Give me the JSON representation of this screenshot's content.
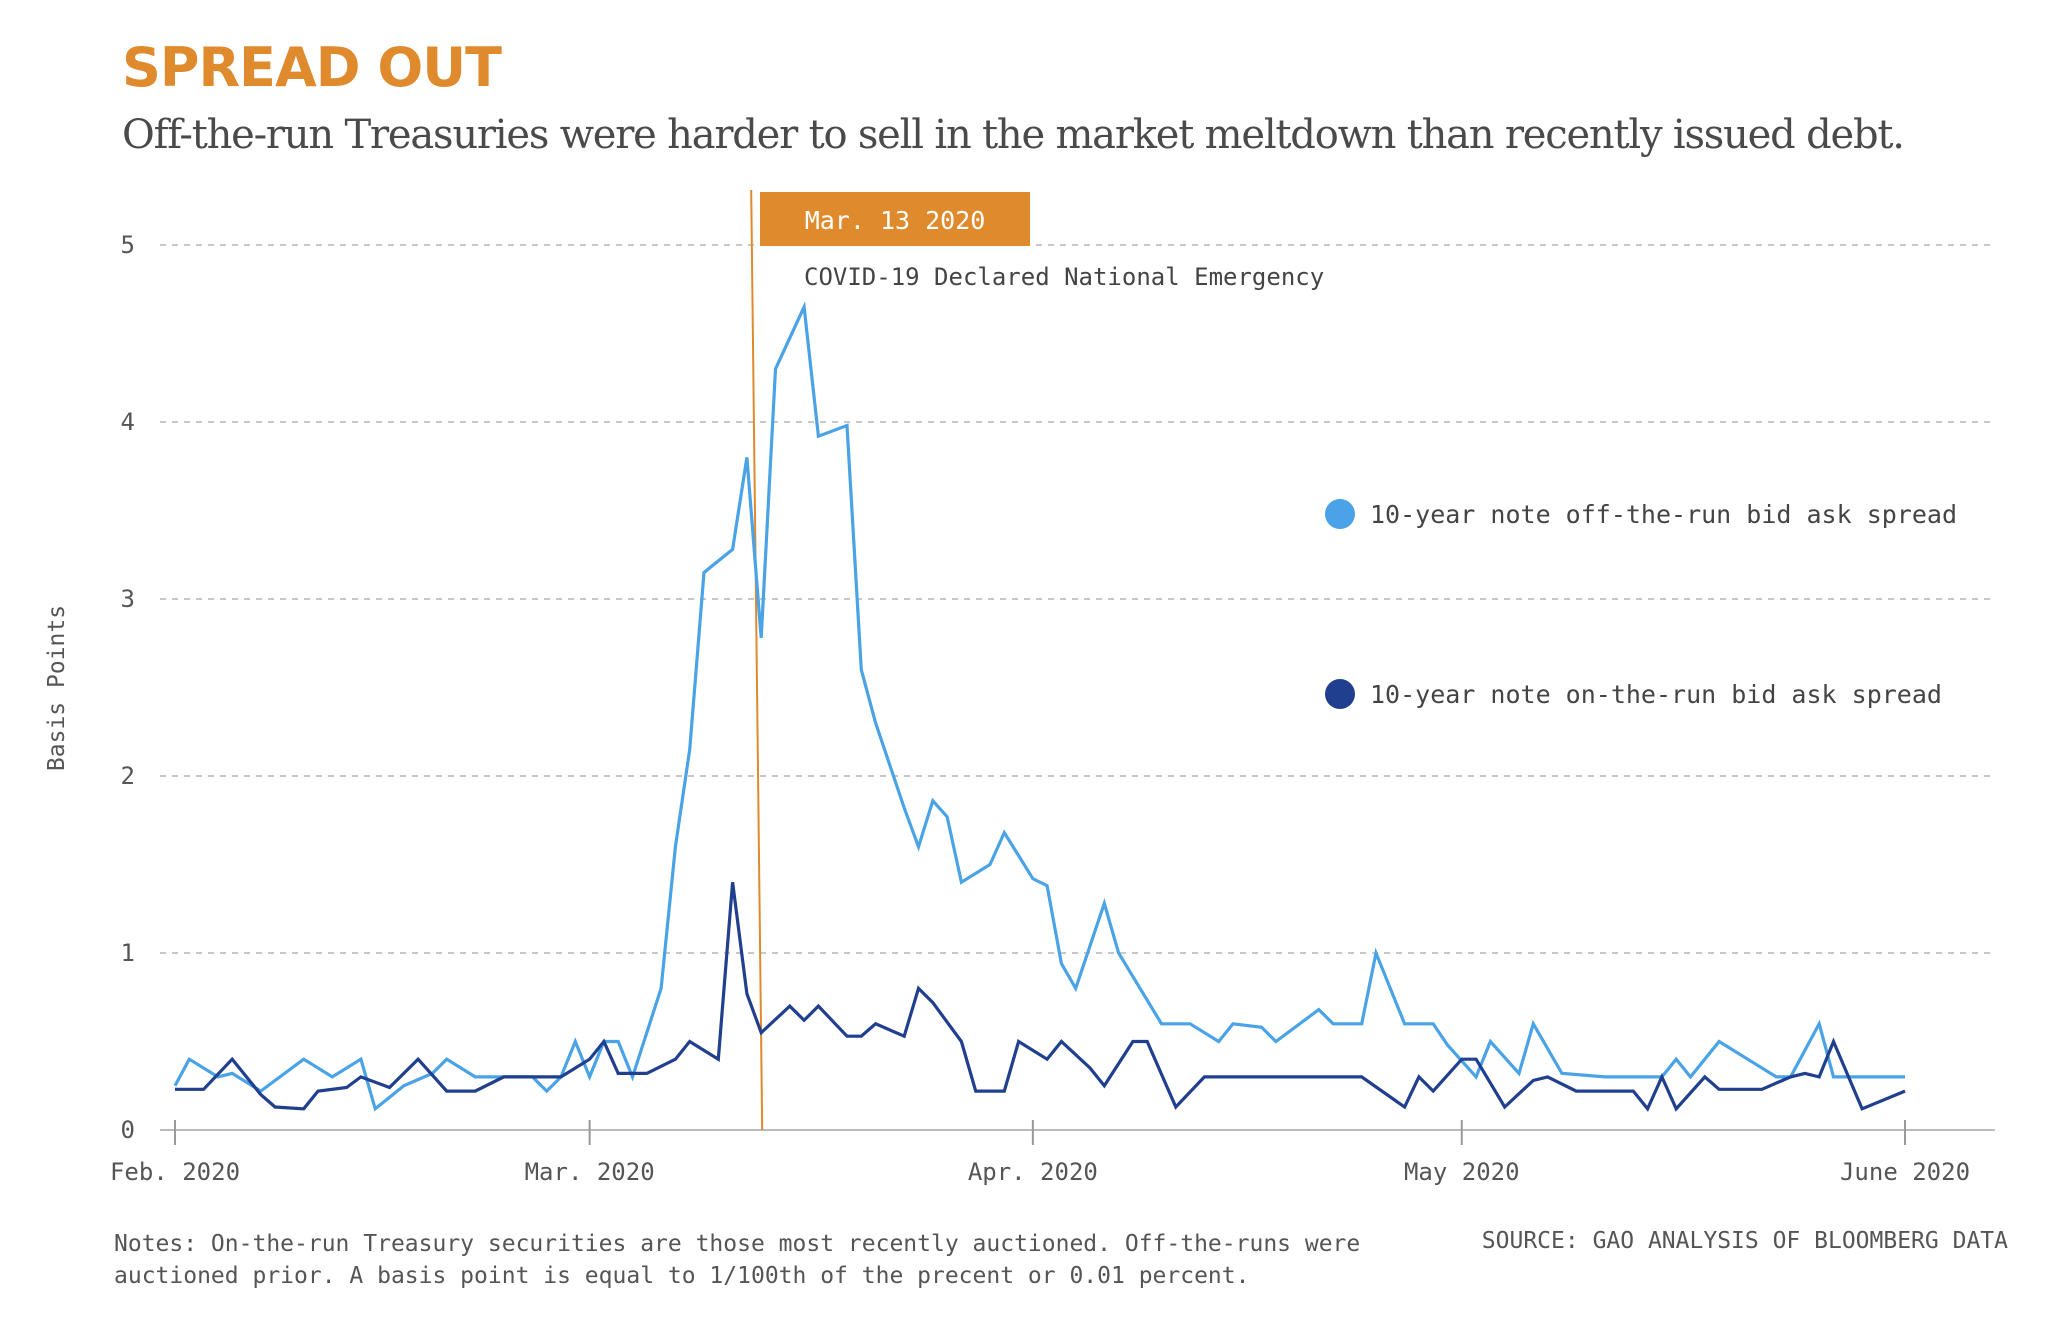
{
  "title": "SPREAD OUT",
  "subtitle": "Off-the-run Treasuries were harder to sell in the market meltdown than recently issued debt.",
  "notes": "Notes: On-the-run Treasury securities are those most recently auctioned. Off-the-runs were auctioned prior. A basis point is equal to 1/100th of the precent or 0.01 percent.",
  "source": "SOURCE: GAO ANALYSIS OF BLOOMBERG DATA",
  "colors": {
    "accent": "#e08a2e",
    "off_the_run": "#4aa3e6",
    "on_the_run": "#213f8f",
    "grid": "#b5b5b5",
    "axis_text": "#555555"
  },
  "chart_data": {
    "type": "line",
    "xlabel": "",
    "ylabel": "Basis Points",
    "ylim": [
      0,
      5
    ],
    "yticks": [
      "0",
      "1",
      "2",
      "3",
      "4",
      "5"
    ],
    "xlim": [
      "2020-02-01",
      "2020-06-01"
    ],
    "xticks": [
      {
        "date": "2020-02-01",
        "label": "Feb. 2020"
      },
      {
        "date": "2020-03-01",
        "label": "Mar. 2020"
      },
      {
        "date": "2020-04-01",
        "label": "Apr. 2020"
      },
      {
        "date": "2020-05-01",
        "label": "May 2020"
      },
      {
        "date": "2020-06-01",
        "label": "June 2020"
      }
    ],
    "grid": "horizontal-dashed",
    "legend_position": "right",
    "annotation": {
      "date": "2020-03-13",
      "label": "Mar. 13 2020",
      "text": "COVID-19 Declared National Emergency"
    },
    "series": [
      {
        "name": "10-year note off-the-run bid ask spread",
        "points": [
          [
            "2020-02-01",
            0.25
          ],
          [
            "2020-02-02",
            0.4
          ],
          [
            "2020-02-04",
            0.3
          ],
          [
            "2020-02-05",
            0.32
          ],
          [
            "2020-02-07",
            0.22
          ],
          [
            "2020-02-10",
            0.4
          ],
          [
            "2020-02-12",
            0.3
          ],
          [
            "2020-02-14",
            0.4
          ],
          [
            "2020-02-15",
            0.12
          ],
          [
            "2020-02-17",
            0.25
          ],
          [
            "2020-02-19",
            0.32
          ],
          [
            "2020-02-20",
            0.4
          ],
          [
            "2020-02-22",
            0.3
          ],
          [
            "2020-02-25",
            0.3
          ],
          [
            "2020-02-26",
            0.3
          ],
          [
            "2020-02-27",
            0.22
          ],
          [
            "2020-02-28",
            0.3
          ],
          [
            "2020-02-29",
            0.5
          ],
          [
            "2020-03-01",
            0.3
          ],
          [
            "2020-03-02",
            0.5
          ],
          [
            "2020-03-03",
            0.5
          ],
          [
            "2020-03-04",
            0.3
          ],
          [
            "2020-03-06",
            0.8
          ],
          [
            "2020-03-07",
            1.6
          ],
          [
            "2020-03-08",
            2.15
          ],
          [
            "2020-03-09",
            3.15
          ],
          [
            "2020-03-11",
            3.28
          ],
          [
            "2020-03-12",
            3.8
          ],
          [
            "2020-03-13",
            2.78
          ],
          [
            "2020-03-14",
            4.3
          ],
          [
            "2020-03-16",
            4.65
          ],
          [
            "2020-03-17",
            3.92
          ],
          [
            "2020-03-19",
            3.98
          ],
          [
            "2020-03-20",
            2.6
          ],
          [
            "2020-03-21",
            2.3
          ],
          [
            "2020-03-23",
            1.82
          ],
          [
            "2020-03-24",
            1.6
          ],
          [
            "2020-03-25",
            1.86
          ],
          [
            "2020-03-26",
            1.77
          ],
          [
            "2020-03-27",
            1.4
          ],
          [
            "2020-03-29",
            1.5
          ],
          [
            "2020-03-30",
            1.68
          ],
          [
            "2020-04-01",
            1.42
          ],
          [
            "2020-04-02",
            1.38
          ],
          [
            "2020-04-03",
            0.94
          ],
          [
            "2020-04-04",
            0.8
          ],
          [
            "2020-04-06",
            1.28
          ],
          [
            "2020-04-07",
            1.0
          ],
          [
            "2020-04-10",
            0.6
          ],
          [
            "2020-04-12",
            0.6
          ],
          [
            "2020-04-14",
            0.5
          ],
          [
            "2020-04-15",
            0.6
          ],
          [
            "2020-04-17",
            0.58
          ],
          [
            "2020-04-18",
            0.5
          ],
          [
            "2020-04-21",
            0.68
          ],
          [
            "2020-04-22",
            0.6
          ],
          [
            "2020-04-24",
            0.6
          ],
          [
            "2020-04-25",
            1.0
          ],
          [
            "2020-04-27",
            0.6
          ],
          [
            "2020-04-29",
            0.6
          ],
          [
            "2020-04-30",
            0.48
          ],
          [
            "2020-05-02",
            0.3
          ],
          [
            "2020-05-03",
            0.5
          ],
          [
            "2020-05-05",
            0.32
          ],
          [
            "2020-05-06",
            0.6
          ],
          [
            "2020-05-08",
            0.32
          ],
          [
            "2020-05-11",
            0.3
          ],
          [
            "2020-05-13",
            0.3
          ],
          [
            "2020-05-15",
            0.3
          ],
          [
            "2020-05-16",
            0.4
          ],
          [
            "2020-05-17",
            0.3
          ],
          [
            "2020-05-19",
            0.5
          ],
          [
            "2020-05-21",
            0.4
          ],
          [
            "2020-05-23",
            0.3
          ],
          [
            "2020-05-24",
            0.3
          ],
          [
            "2020-05-26",
            0.6
          ],
          [
            "2020-05-27",
            0.3
          ],
          [
            "2020-06-01",
            0.3
          ]
        ]
      },
      {
        "name": "10-year note on-the-run bid ask spread",
        "points": [
          [
            "2020-02-01",
            0.23
          ],
          [
            "2020-02-03",
            0.23
          ],
          [
            "2020-02-05",
            0.4
          ],
          [
            "2020-02-07",
            0.2
          ],
          [
            "2020-02-08",
            0.13
          ],
          [
            "2020-02-10",
            0.12
          ],
          [
            "2020-02-11",
            0.22
          ],
          [
            "2020-02-13",
            0.24
          ],
          [
            "2020-02-14",
            0.3
          ],
          [
            "2020-02-16",
            0.24
          ],
          [
            "2020-02-18",
            0.4
          ],
          [
            "2020-02-20",
            0.22
          ],
          [
            "2020-02-22",
            0.22
          ],
          [
            "2020-02-24",
            0.3
          ],
          [
            "2020-02-27",
            0.3
          ],
          [
            "2020-02-28",
            0.3
          ],
          [
            "2020-03-01",
            0.4
          ],
          [
            "2020-03-02",
            0.5
          ],
          [
            "2020-03-03",
            0.32
          ],
          [
            "2020-03-05",
            0.32
          ],
          [
            "2020-03-07",
            0.4
          ],
          [
            "2020-03-08",
            0.5
          ],
          [
            "2020-03-10",
            0.4
          ],
          [
            "2020-03-11",
            1.4
          ],
          [
            "2020-03-12",
            0.77
          ],
          [
            "2020-03-13",
            0.55
          ],
          [
            "2020-03-15",
            0.7
          ],
          [
            "2020-03-16",
            0.62
          ],
          [
            "2020-03-17",
            0.7
          ],
          [
            "2020-03-19",
            0.53
          ],
          [
            "2020-03-20",
            0.53
          ],
          [
            "2020-03-21",
            0.6
          ],
          [
            "2020-03-23",
            0.53
          ],
          [
            "2020-03-24",
            0.8
          ],
          [
            "2020-03-25",
            0.72
          ],
          [
            "2020-03-27",
            0.5
          ],
          [
            "2020-03-28",
            0.22
          ],
          [
            "2020-03-30",
            0.22
          ],
          [
            "2020-03-31",
            0.5
          ],
          [
            "2020-04-02",
            0.4
          ],
          [
            "2020-04-03",
            0.5
          ],
          [
            "2020-04-05",
            0.35
          ],
          [
            "2020-04-06",
            0.25
          ],
          [
            "2020-04-08",
            0.5
          ],
          [
            "2020-04-09",
            0.5
          ],
          [
            "2020-04-11",
            0.13
          ],
          [
            "2020-04-13",
            0.3
          ],
          [
            "2020-04-24",
            0.3
          ],
          [
            "2020-04-27",
            0.13
          ],
          [
            "2020-04-28",
            0.3
          ],
          [
            "2020-04-29",
            0.22
          ],
          [
            "2020-05-01",
            0.4
          ],
          [
            "2020-05-02",
            0.4
          ],
          [
            "2020-05-04",
            0.13
          ],
          [
            "2020-05-06",
            0.28
          ],
          [
            "2020-05-07",
            0.3
          ],
          [
            "2020-05-09",
            0.22
          ],
          [
            "2020-05-13",
            0.22
          ],
          [
            "2020-05-14",
            0.12
          ],
          [
            "2020-05-15",
            0.3
          ],
          [
            "2020-05-16",
            0.12
          ],
          [
            "2020-05-18",
            0.3
          ],
          [
            "2020-05-19",
            0.23
          ],
          [
            "2020-05-22",
            0.23
          ],
          [
            "2020-05-24",
            0.3
          ],
          [
            "2020-05-25",
            0.32
          ],
          [
            "2020-05-26",
            0.3
          ],
          [
            "2020-05-27",
            0.5
          ],
          [
            "2020-05-29",
            0.12
          ],
          [
            "2020-06-01",
            0.22
          ]
        ]
      }
    ]
  }
}
